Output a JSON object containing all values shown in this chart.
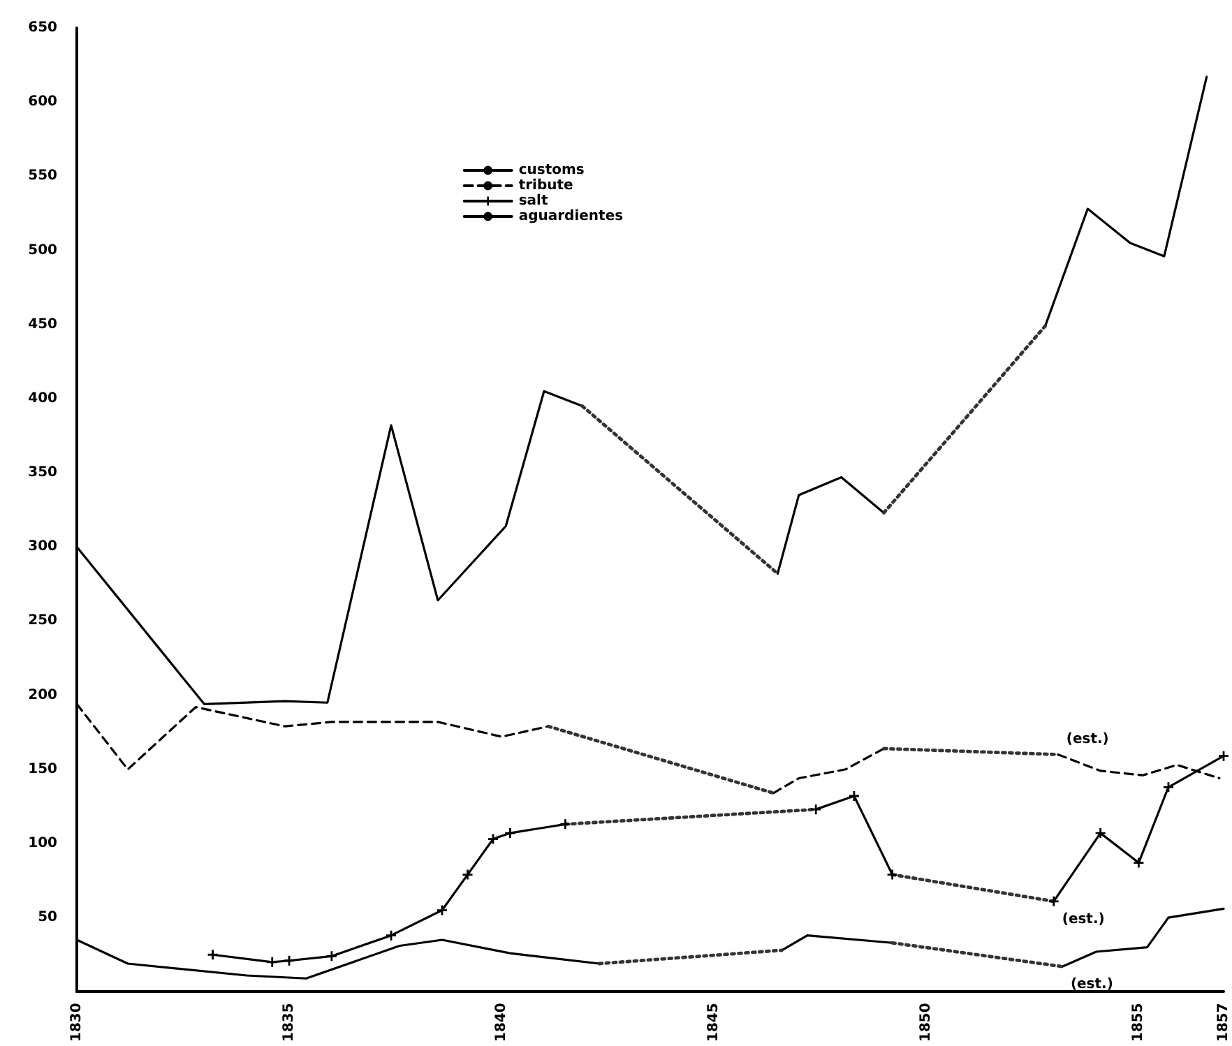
{
  "chart_data": {
    "type": "line",
    "xlim": [
      1830,
      1857
    ],
    "xticks": [
      1830,
      1835,
      1840,
      1845,
      1850,
      1855,
      1857
    ],
    "ylim": [
      0,
      650
    ],
    "yticks": [
      50,
      100,
      150,
      200,
      250,
      300,
      350,
      400,
      450,
      500,
      550,
      600,
      650
    ],
    "grid": false,
    "legend": "top",
    "marker": "none",
    "series": [
      {
        "name": "customs",
        "color": "#000000",
        "line_style": "solid",
        "x": [
          1830,
          1833.0,
          1834.9,
          1835.9,
          1837.4,
          1838.5,
          1840.1,
          1841.0,
          1841.9,
          null,
          1846.5,
          1847.0,
          1848.0,
          1849.0,
          null,
          1852.8,
          1853.8,
          1854.8,
          1855.6,
          1856.6
        ],
        "values": [
          300,
          194,
          196,
          195,
          382,
          264,
          314,
          405,
          395,
          null,
          282,
          335,
          347,
          323,
          null,
          449,
          528,
          505,
          496,
          617
        ]
      },
      {
        "name": "tribute",
        "color": "#000000",
        "line_style": "dashed",
        "x": [
          1830,
          1831.2,
          1832.8,
          1834.9,
          1836.0,
          1838.5,
          1840.0,
          1841.1,
          null,
          1846.4,
          1847.0,
          1848.1,
          1849.0,
          null,
          1853.1,
          1854.1,
          1855.1,
          1855.9,
          1856.9
        ],
        "values": [
          194,
          150,
          192,
          179,
          182,
          182,
          172,
          179,
          null,
          134,
          144,
          150,
          164,
          null,
          160,
          149,
          146,
          153,
          144
        ]
      },
      {
        "name": "salt",
        "color": "#000000",
        "line_style": "solid",
        "marker": "cross",
        "x": [
          1833.2,
          1834.6,
          1835.0,
          1836.0,
          1837.4,
          1838.6,
          1839.2,
          1839.8,
          1840.2,
          1841.5,
          null,
          1847.4,
          1848.3,
          1849.2,
          null,
          1853.0,
          1854.1,
          1855.0,
          1855.7,
          1857.0
        ],
        "values": [
          25,
          20,
          21,
          24,
          38,
          55,
          79,
          103,
          107,
          113,
          null,
          123,
          132,
          79,
          null,
          61,
          107,
          87,
          138,
          159
        ]
      },
      {
        "name": "aguardientes",
        "color": "#000000",
        "line_style": "solid",
        "x": [
          1830,
          1831.2,
          1834.0,
          1835.4,
          1837.6,
          1838.6,
          1840.2,
          1842.3,
          null,
          1846.6,
          1847.2,
          1849.2,
          null,
          1853.2,
          1854.0,
          1855.2,
          1855.7,
          1857.0
        ],
        "values": [
          35,
          19,
          11,
          9,
          31,
          35,
          26,
          19,
          null,
          28,
          38,
          33,
          null,
          17,
          27,
          30,
          50,
          56
        ]
      },
      {
        "color": "#333333",
        "line_style": "dotted",
        "x": [
          1841.9,
          1846.5
        ],
        "values": [
          395,
          282
        ]
      },
      {
        "color": "#333333",
        "line_style": "dotted",
        "x": [
          1849.0,
          1852.8
        ],
        "values": [
          323,
          449
        ]
      },
      {
        "color": "#333333",
        "line_style": "dotted",
        "x": [
          1841.1,
          1846.4
        ],
        "values": [
          179,
          134
        ]
      },
      {
        "color": "#333333",
        "line_style": "dotted",
        "x": [
          1849.0,
          1853.1
        ],
        "values": [
          164,
          160
        ]
      },
      {
        "color": "#333333",
        "line_style": "dotted",
        "x": [
          1841.5,
          1847.4
        ],
        "values": [
          113,
          123
        ]
      },
      {
        "color": "#333333",
        "line_style": "dotted",
        "x": [
          1849.2,
          1853.0
        ],
        "values": [
          79,
          61
        ]
      },
      {
        "color": "#333333",
        "line_style": "dotted",
        "x": [
          1842.3,
          1846.6
        ],
        "values": [
          19,
          28
        ]
      },
      {
        "color": "#333333",
        "line_style": "dotted",
        "x": [
          1849.2,
          1853.2
        ],
        "values": [
          33,
          17
        ]
      }
    ],
    "annotations": [
      {
        "text": "(est.)",
        "x": 1853.1,
        "y": 160
      },
      {
        "text": "(est.)",
        "x": 1853.0,
        "y": 61
      },
      {
        "text": "(est.)",
        "x": 1853.2,
        "y": 17
      }
    ]
  }
}
